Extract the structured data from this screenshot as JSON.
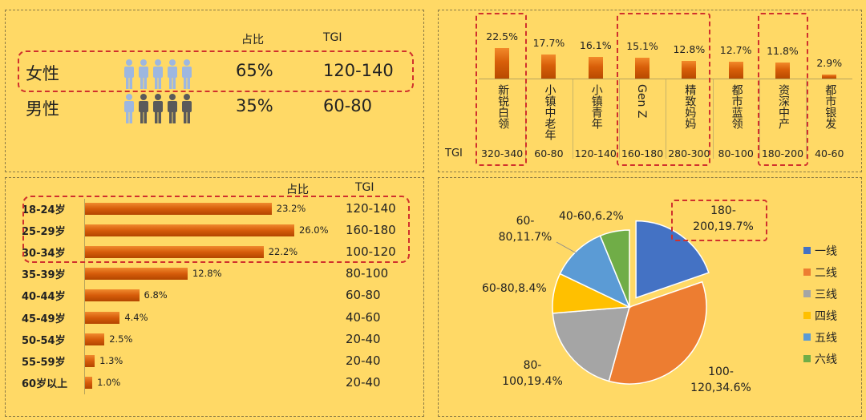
{
  "gender": {
    "headers": {
      "share": "占比",
      "tgi": "TGI"
    },
    "rows": [
      {
        "label": "女性",
        "share": "65%",
        "tgi": "120-140",
        "filled": 5,
        "color": "#9db7e0"
      },
      {
        "label": "男性",
        "share": "35%",
        "tgi": "60-80",
        "filled": 1,
        "color": "#9db7e0"
      }
    ]
  },
  "segments": {
    "tgi_label": "TGI",
    "chart_data": {
      "type": "bar",
      "title": "",
      "categories": [
        "新锐白领",
        "小镇中老年",
        "小镇青年",
        "Gen Z",
        "精致妈妈",
        "都市蓝领",
        "资深中产",
        "都市银发"
      ],
      "values": [
        22.5,
        17.7,
        16.1,
        15.1,
        12.8,
        12.7,
        11.8,
        2.9
      ],
      "value_labels": [
        "22.5%",
        "17.7%",
        "16.1%",
        "15.1%",
        "12.8%",
        "12.7%",
        "11.8%",
        "2.9%"
      ],
      "tgi": [
        "320-340",
        "60-80",
        "120-140",
        "160-180",
        "280-300",
        "80-100",
        "180-200",
        "40-60"
      ],
      "ylim": [
        0,
        22.5
      ]
    }
  },
  "age": {
    "headers": {
      "share": "占比",
      "tgi": "TGI"
    },
    "chart_data": {
      "type": "bar",
      "orientation": "horizontal",
      "categories": [
        "18-24岁",
        "25-29岁",
        "30-34岁",
        "35-39岁",
        "40-44岁",
        "45-49岁",
        "50-54岁",
        "55-59岁",
        "60岁以上"
      ],
      "values": [
        23.2,
        26.0,
        22.2,
        12.8,
        6.8,
        4.4,
        2.5,
        1.3,
        1.0
      ],
      "value_labels": [
        "23.2%",
        "26.0%",
        "22.2%",
        "12.8%",
        "6.8%",
        "4.4%",
        "2.5%",
        "1.3%",
        "1.0%"
      ],
      "tgi": [
        "120-140",
        "160-180",
        "100-120",
        "80-100",
        "60-80",
        "40-60",
        "20-40",
        "20-40",
        "20-40"
      ],
      "xlim": [
        0,
        26.0
      ]
    }
  },
  "city": {
    "chart_data": {
      "type": "pie",
      "labels": [
        "一线",
        "二线",
        "三线",
        "四线",
        "五线",
        "六线"
      ],
      "values": [
        19.7,
        34.6,
        19.4,
        8.4,
        11.7,
        6.2
      ],
      "colors": [
        "#4472c4",
        "#ed7d31",
        "#a5a5a5",
        "#ffc000",
        "#5b9bd5",
        "#70ad47"
      ],
      "exploded": [
        true,
        false,
        false,
        false,
        false,
        false
      ],
      "data_labels": [
        "180-200,19.7%",
        "100-120,34.6%",
        "80-100,19.4%",
        "60-80,8.4%",
        "60-80,11.7%",
        "40-60,6.2%"
      ],
      "legend_position": "right"
    },
    "label_lines": [
      [
        "180-",
        "200,19.7%"
      ],
      [
        "100-",
        "120,34.6%"
      ],
      [
        "80-",
        "100,19.4%"
      ],
      [
        "60-80,8.4%"
      ],
      [
        "60-",
        "80,11.7%"
      ],
      [
        "40-60,6.2%"
      ]
    ]
  }
}
